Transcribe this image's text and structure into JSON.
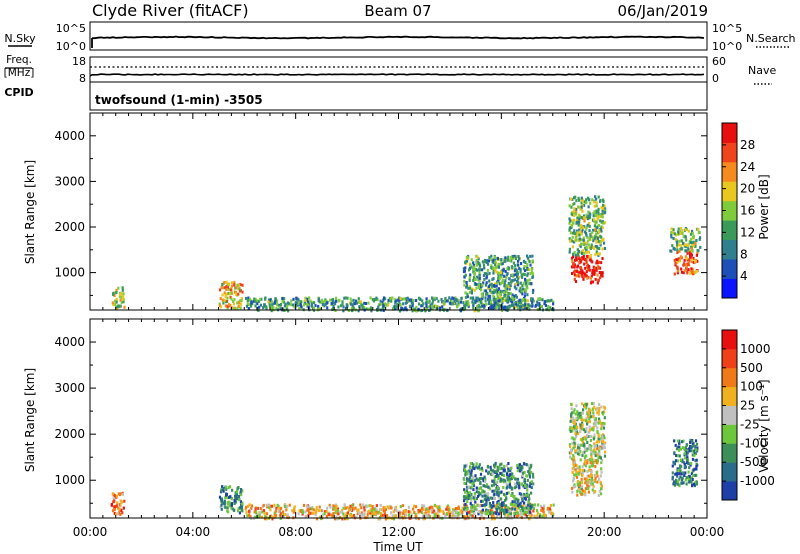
{
  "header": {
    "station": "Clyde River (fitACF)",
    "beam": "Beam 07",
    "date": "06/Jan/2019"
  },
  "nsky_panel": {
    "left_label": "N.Sky",
    "right_label": "N.Search",
    "left_ticks": [
      "10^5",
      "10^0"
    ],
    "right_ticks": [
      "10^5",
      "10^0"
    ]
  },
  "freq_panel": {
    "left_label_top": "Freq.",
    "left_label_unit": "[MHz]",
    "left_ticks": [
      "18",
      "8"
    ],
    "right_ticks": [
      "60",
      "0"
    ],
    "right_label": "Nave",
    "cpid_label": "CPID",
    "cpid_text": "twofsound (1-min) -3505"
  },
  "chart_data": [
    {
      "type": "heatmap",
      "name": "power",
      "ylabel": "Slant Range [km]",
      "yticks": [
        "4000",
        "3000",
        "2000",
        "1000"
      ],
      "ylim": [
        180,
        4500
      ],
      "xlim": [
        0,
        24
      ],
      "colorbar_label": "Power [dB]",
      "colorbar_ticks": [
        "28",
        "24",
        "20",
        "16",
        "12",
        "8",
        "4"
      ],
      "colorbar_range": [
        0,
        32
      ],
      "colorbar_colors": [
        "#0a14ff",
        "#1d4fb8",
        "#2f7f8f",
        "#3a9a5a",
        "#7ecb3b",
        "#e8c81e",
        "#f58a1e",
        "#f0441a",
        "#e80f0f"
      ],
      "blobs": [
        {
          "t": [
            0.8,
            1.3
          ],
          "r": [
            250,
            700
          ],
          "level": 0.55
        },
        {
          "t": [
            5.0,
            5.9
          ],
          "r": [
            250,
            850
          ],
          "level": 0.65
        },
        {
          "t": [
            6.0,
            18.0
          ],
          "r": [
            190,
            480
          ],
          "level": 0.35
        },
        {
          "t": [
            14.5,
            17.2
          ],
          "r": [
            250,
            1400
          ],
          "level": 0.35
        },
        {
          "t": [
            18.7,
            19.9
          ],
          "r": [
            800,
            1400
          ],
          "level": 0.92
        },
        {
          "t": [
            18.6,
            20.0
          ],
          "r": [
            1400,
            2700
          ],
          "level": 0.45
        },
        {
          "t": [
            22.7,
            23.6
          ],
          "r": [
            1000,
            1500
          ],
          "level": 0.85
        },
        {
          "t": [
            22.5,
            23.7
          ],
          "r": [
            1500,
            2000
          ],
          "level": 0.45
        }
      ]
    },
    {
      "type": "heatmap",
      "name": "velocity",
      "ylabel": "Slant Range [km]",
      "yticks": [
        "4000",
        "3000",
        "2000",
        "1000"
      ],
      "ylim": [
        180,
        4500
      ],
      "xlim": [
        0,
        24
      ],
      "xticks": [
        "00:00",
        "04:00",
        "08:00",
        "12:00",
        "16:00",
        "20:00",
        "00:00"
      ],
      "xlabel": "Time UT",
      "colorbar_label": "Velocity [m s⁻¹]",
      "colorbar_ticks": [
        "1000",
        "500",
        "100",
        "25",
        "-25",
        "-100",
        "-500",
        "-1000"
      ],
      "colorbar_colors": [
        "#1c3fa8",
        "#2a6d8a",
        "#3d8f5a",
        "#6cc83a",
        "#c0c0c0",
        "#f0b020",
        "#f07a18",
        "#f04018",
        "#e80f0f"
      ],
      "blobs": [
        {
          "t": [
            0.8,
            1.3
          ],
          "r": [
            250,
            750
          ],
          "level": 0.75
        },
        {
          "t": [
            5.0,
            5.9
          ],
          "r": [
            300,
            900
          ],
          "level": 0.25
        },
        {
          "t": [
            6.0,
            18.0
          ],
          "r": [
            190,
            500
          ],
          "level": 0.6
        },
        {
          "t": [
            14.5,
            17.2
          ],
          "r": [
            300,
            1400
          ],
          "level": 0.25
        },
        {
          "t": [
            18.7,
            19.9
          ],
          "r": [
            700,
            1500
          ],
          "level": 0.55
        },
        {
          "t": [
            18.6,
            20.0
          ],
          "r": [
            1500,
            2700
          ],
          "level": 0.45
        },
        {
          "t": [
            22.6,
            23.6
          ],
          "r": [
            900,
            1900
          ],
          "level": 0.2
        }
      ]
    }
  ]
}
